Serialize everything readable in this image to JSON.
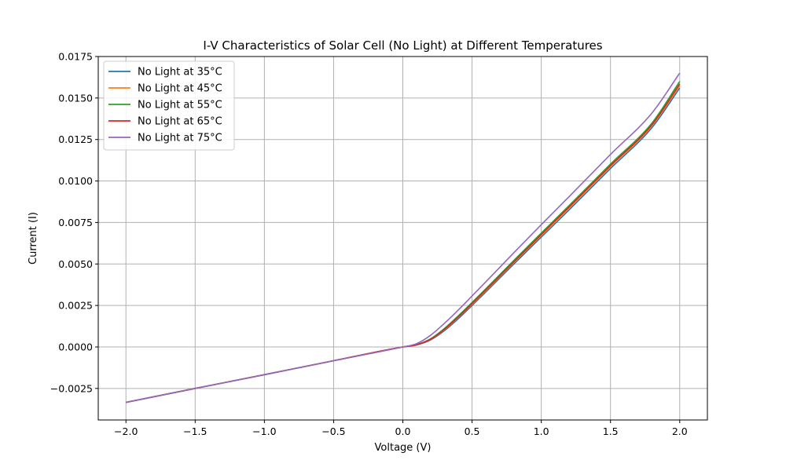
{
  "chart_data": {
    "type": "line",
    "title": "I-V Characteristics of Solar Cell (No Light) at Different Temperatures",
    "xlabel": "Voltage (V)",
    "ylabel": "Current (I)",
    "xlim": [
      -2.2,
      2.2
    ],
    "ylim": [
      -0.0044,
      0.0175
    ],
    "xticks": [
      -2.0,
      -1.5,
      -1.0,
      -0.5,
      0.0,
      0.5,
      1.0,
      1.5,
      2.0
    ],
    "xtick_labels": [
      "−2.0",
      "−1.5",
      "−1.0",
      "−0.5",
      "0.0",
      "0.5",
      "1.0",
      "1.5",
      "2.0"
    ],
    "yticks": [
      -0.0025,
      0.0,
      0.0025,
      0.005,
      0.0075,
      0.01,
      0.0125,
      0.015,
      0.0175
    ],
    "ytick_labels": [
      "−0.0025",
      "0.0000",
      "0.0025",
      "0.0050",
      "0.0075",
      "0.0100",
      "0.0125",
      "0.0150",
      "0.0175"
    ],
    "grid": true,
    "legend_position": "top-left",
    "x": [
      -2.0,
      -1.5,
      -1.0,
      -0.5,
      0.0,
      0.1,
      0.2,
      0.3,
      0.4,
      0.5,
      0.6,
      0.8,
      1.0,
      1.2,
      1.5,
      1.8,
      2.0
    ],
    "series": [
      {
        "name": "No Light at 35°C",
        "color": "#1f77b4",
        "values": [
          -0.00334,
          -0.0025,
          -0.00167,
          -0.00083,
          0.0,
          0.00012,
          0.00042,
          0.00098,
          0.0017,
          0.0025,
          0.00332,
          0.00498,
          0.00662,
          0.00825,
          0.01075,
          0.01322,
          0.0156
        ]
      },
      {
        "name": "No Light at 45°C",
        "color": "#ff7f0e",
        "values": [
          -0.00334,
          -0.0025,
          -0.00167,
          -0.00083,
          0.0,
          0.00013,
          0.00045,
          0.00104,
          0.00178,
          0.00258,
          0.00341,
          0.00508,
          0.00673,
          0.00837,
          0.01087,
          0.01334,
          0.01575
        ]
      },
      {
        "name": "No Light at 55°C",
        "color": "#2ca02c",
        "values": [
          -0.00334,
          -0.0025,
          -0.00167,
          -0.00083,
          0.0,
          0.00014,
          0.00049,
          0.00111,
          0.00187,
          0.00268,
          0.00351,
          0.0052,
          0.00686,
          0.00851,
          0.01102,
          0.0135,
          0.016
        ]
      },
      {
        "name": "No Light at 65°C",
        "color": "#d62728",
        "values": [
          -0.00334,
          -0.0025,
          -0.00167,
          -0.00083,
          0.0,
          0.00013,
          0.00046,
          0.00106,
          0.00181,
          0.00262,
          0.00345,
          0.00512,
          0.00678,
          0.00843,
          0.01093,
          0.0134,
          0.01585
        ]
      },
      {
        "name": "No Light at 75°C",
        "color": "#9467bd",
        "values": [
          -0.00334,
          -0.0025,
          -0.00167,
          -0.00083,
          0.0,
          0.0002,
          0.0007,
          0.00142,
          0.00222,
          0.00307,
          0.00393,
          0.00566,
          0.00737,
          0.00905,
          0.0116,
          0.0141,
          0.0165
        ]
      }
    ]
  }
}
